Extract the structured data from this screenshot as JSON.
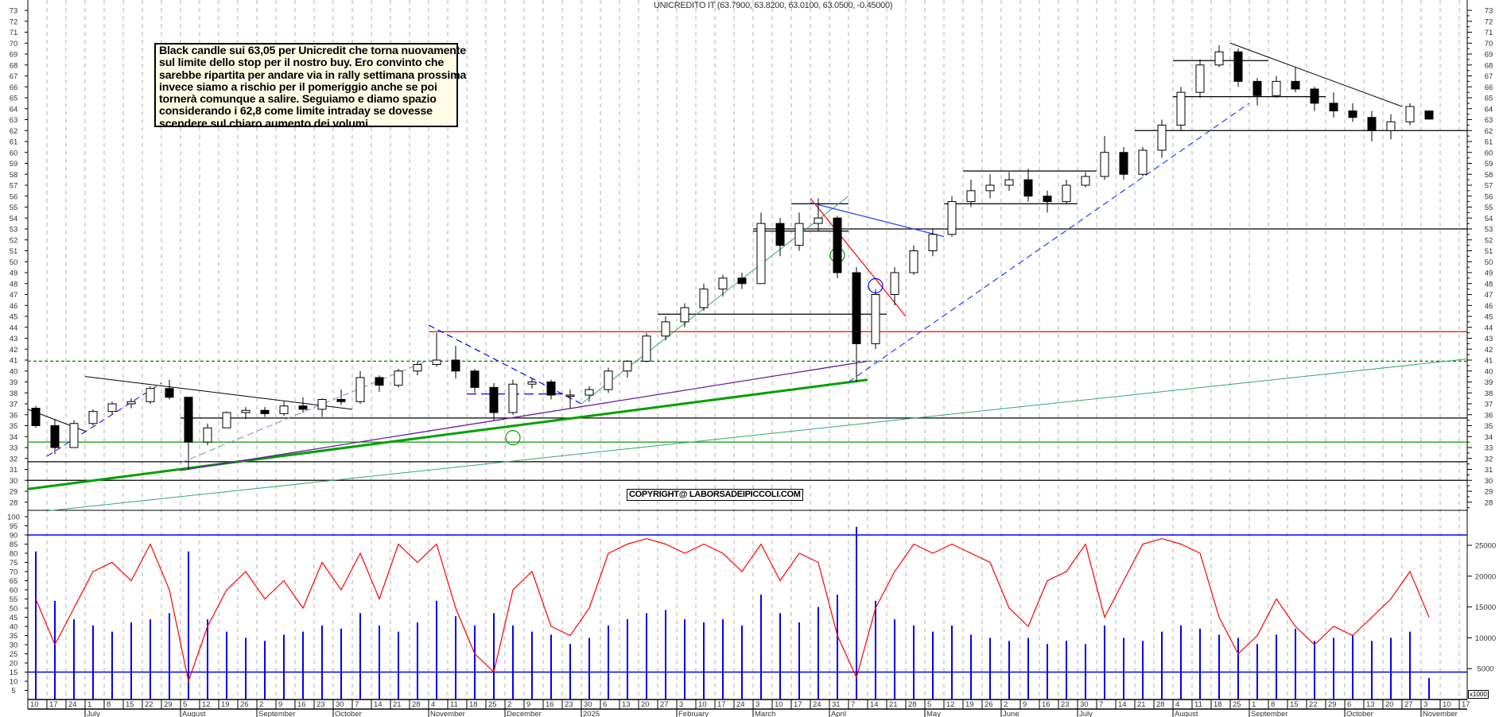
{
  "title": "UNICREDITO IT (63.7900, 63.8200, 63.0100, 63.0500, -0.45000)",
  "note_lines": [
    "Black candle sui 63,05 per Unicredit che torna nuovamente",
    "sul limite dello stop per il nostro buy. Ero convinto che",
    "sarebbe ripartita per andare via in rally settimana prossima",
    "invece siamo a rischio per il pomeriggio anche se poi",
    "tornerà comunque a salire. Seguiamo e diamo spazio",
    "considerando i 62,8 come limite intraday se dovesse",
    "scendere sul chiaro aumento dei volumi."
  ],
  "copyright": "COPYRIGHT@ LABORSADEIPICCOLI.COM",
  "volume_unit": "x1000",
  "colors": {
    "up": "#ffffff",
    "down": "#000000",
    "oscillator": "#ff0000",
    "volume": "#0000ff",
    "grid": "#b0b0b0"
  },
  "chart_data": {
    "type": "candlestick",
    "symbol": "UNICREDITO IT",
    "last": {
      "open": 63.79,
      "high": 63.82,
      "low": 63.01,
      "close": 63.05,
      "change": -0.45
    },
    "price_axis": {
      "range": [
        28,
        73
      ],
      "ticks": [
        28,
        29,
        30,
        31,
        32,
        33,
        34,
        35,
        36,
        37,
        38,
        39,
        40,
        41,
        42,
        43,
        44,
        45,
        46,
        47,
        48,
        49,
        50,
        51,
        52,
        53,
        54,
        55,
        56,
        57,
        58,
        59,
        60,
        61,
        62,
        63,
        64,
        65,
        66,
        67,
        68,
        69,
        70,
        71,
        72,
        73
      ]
    },
    "oscillator_axis": {
      "range": [
        0,
        100
      ],
      "ticks": [
        5,
        10,
        15,
        20,
        25,
        30,
        35,
        40,
        45,
        50,
        55,
        60,
        65,
        70,
        75,
        80,
        85,
        90,
        95,
        100
      ],
      "levels": [
        90,
        15
      ]
    },
    "volume_axis": {
      "range": [
        0,
        27000
      ],
      "ticks": [
        5000,
        10000,
        15000,
        20000,
        25000
      ],
      "unit": "x1000"
    },
    "grid": "vertical dashed weekly",
    "candles": [
      [
        "2024-06-10",
        36.6,
        36.8,
        34.8,
        35.0
      ],
      [
        "2024-06-17",
        35.0,
        35.6,
        32.4,
        33.0
      ],
      [
        "2024-06-24",
        33.0,
        35.5,
        33.0,
        35.2
      ],
      [
        "2024-07-01",
        35.2,
        36.5,
        35.0,
        36.3
      ],
      [
        "2024-07-08",
        36.3,
        37.2,
        36.0,
        37.0
      ],
      [
        "2024-07-15",
        37.0,
        37.5,
        36.6,
        37.2
      ],
      [
        "2024-07-22",
        37.2,
        38.6,
        37.0,
        38.4
      ],
      [
        "2024-07-29",
        38.4,
        39.2,
        37.4,
        37.6
      ],
      [
        "2024-08-05",
        37.6,
        37.6,
        31.0,
        33.5
      ],
      [
        "2024-08-12",
        33.5,
        35.2,
        33.2,
        34.8
      ],
      [
        "2024-08-19",
        34.8,
        36.3,
        34.8,
        36.2
      ],
      [
        "2024-08-26",
        36.2,
        36.7,
        35.6,
        36.4
      ],
      [
        "2024-09-02",
        36.4,
        36.7,
        35.8,
        36.1
      ],
      [
        "2024-09-09",
        36.1,
        37.2,
        35.9,
        36.8
      ],
      [
        "2024-09-16",
        36.8,
        37.6,
        36.2,
        36.5
      ],
      [
        "2024-09-23",
        36.5,
        37.5,
        35.8,
        37.4
      ],
      [
        "2024-09-30",
        37.4,
        38.3,
        36.9,
        37.2
      ],
      [
        "2024-10-07",
        37.2,
        40.0,
        37.0,
        39.4
      ],
      [
        "2024-10-14",
        39.4,
        39.6,
        38.1,
        38.7
      ],
      [
        "2024-10-21",
        38.7,
        40.2,
        38.5,
        40.0
      ],
      [
        "2024-10-28",
        40.0,
        40.9,
        39.6,
        40.6
      ],
      [
        "2024-11-04",
        40.6,
        43.5,
        40.4,
        41.0
      ],
      [
        "2024-11-11",
        41.0,
        42.3,
        39.3,
        40.0
      ],
      [
        "2024-11-18",
        40.0,
        40.2,
        38.0,
        38.5
      ],
      [
        "2024-11-25",
        38.5,
        38.9,
        35.5,
        36.2
      ],
      [
        "2024-12-02",
        36.2,
        39.2,
        36.0,
        38.8
      ],
      [
        "2024-12-09",
        38.8,
        39.3,
        38.4,
        39.0
      ],
      [
        "2024-12-16",
        39.0,
        39.2,
        37.4,
        37.8
      ],
      [
        "2024-12-23",
        37.8,
        38.3,
        36.6,
        37.8
      ],
      [
        "2024-12-30",
        37.8,
        38.6,
        37.2,
        38.3
      ],
      [
        "2025-01-06",
        38.3,
        40.3,
        38.0,
        40.0
      ],
      [
        "2025-01-13",
        40.0,
        41.0,
        39.4,
        40.9
      ],
      [
        "2025-01-20",
        40.9,
        43.5,
        40.8,
        43.2
      ],
      [
        "2025-01-27",
        43.2,
        45.0,
        42.8,
        44.5
      ],
      [
        "2025-02-03",
        44.5,
        46.2,
        44.0,
        45.8
      ],
      [
        "2025-02-10",
        45.8,
        48.0,
        45.5,
        47.5
      ],
      [
        "2025-02-17",
        47.5,
        48.8,
        46.8,
        48.5
      ],
      [
        "2025-02-24",
        48.5,
        49.0,
        47.5,
        48.0
      ],
      [
        "2025-03-03",
        48.0,
        54.5,
        48.0,
        53.5
      ],
      [
        "2025-03-10",
        53.5,
        54.0,
        50.5,
        51.5
      ],
      [
        "2025-03-17",
        51.5,
        54.5,
        51.0,
        53.5
      ],
      [
        "2025-03-24",
        53.5,
        55.8,
        52.8,
        54.0
      ],
      [
        "2025-03-31",
        54.0,
        54.2,
        48.5,
        49.0
      ],
      [
        "2025-04-07",
        49.0,
        49.5,
        39.0,
        42.5
      ],
      [
        "2025-04-14",
        42.5,
        47.5,
        42.0,
        47.0
      ],
      [
        "2025-04-21",
        47.0,
        49.5,
        46.0,
        49.0
      ],
      [
        "2025-04-28",
        49.0,
        51.5,
        48.8,
        51.0
      ],
      [
        "2025-05-05",
        51.0,
        53.0,
        50.5,
        52.5
      ],
      [
        "2025-05-12",
        52.5,
        56.0,
        52.3,
        55.5
      ],
      [
        "2025-05-19",
        55.5,
        57.5,
        55.0,
        56.5
      ],
      [
        "2025-05-26",
        56.5,
        58.0,
        55.8,
        57.0
      ],
      [
        "2025-06-02",
        57.0,
        58.2,
        56.5,
        57.5
      ],
      [
        "2025-06-09",
        57.5,
        58.5,
        55.5,
        56.0
      ],
      [
        "2025-06-16",
        56.0,
        56.5,
        54.5,
        55.5
      ],
      [
        "2025-06-23",
        55.5,
        57.5,
        55.3,
        57.0
      ],
      [
        "2025-06-30",
        57.0,
        58.2,
        56.8,
        57.8
      ],
      [
        "2025-07-07",
        57.8,
        61.5,
        57.5,
        60.0
      ],
      [
        "2025-07-14",
        60.0,
        60.5,
        57.5,
        58.0
      ],
      [
        "2025-07-21",
        58.0,
        60.5,
        57.8,
        60.2
      ],
      [
        "2025-07-28",
        60.2,
        63.0,
        59.5,
        62.5
      ],
      [
        "2025-08-04",
        62.5,
        66.0,
        62.0,
        65.5
      ],
      [
        "2025-08-11",
        65.5,
        68.5,
        65.0,
        68.0
      ],
      [
        "2025-08-18",
        68.0,
        69.8,
        67.8,
        69.2
      ],
      [
        "2025-08-25",
        69.2,
        69.5,
        66.0,
        66.5
      ],
      [
        "2025-09-01",
        66.5,
        66.8,
        64.3,
        65.2
      ],
      [
        "2025-09-08",
        65.2,
        67.0,
        65.0,
        66.5
      ],
      [
        "2025-09-15",
        66.5,
        67.8,
        65.5,
        65.8
      ],
      [
        "2025-09-22",
        65.8,
        66.0,
        63.8,
        64.5
      ],
      [
        "2025-09-29",
        64.5,
        65.5,
        63.2,
        63.8
      ],
      [
        "2025-10-06",
        63.8,
        64.5,
        62.8,
        63.2
      ],
      [
        "2025-10-13",
        63.2,
        63.8,
        61.0,
        62.0
      ],
      [
        "2025-10-20",
        62.0,
        63.5,
        61.2,
        62.8
      ],
      [
        "2025-10-27",
        62.8,
        64.5,
        62.5,
        64.2
      ],
      [
        "2025-11-03",
        63.79,
        63.82,
        63.01,
        63.05
      ]
    ],
    "oscillator": [
      55,
      30,
      50,
      70,
      75,
      65,
      85,
      60,
      10,
      40,
      60,
      70,
      55,
      65,
      50,
      75,
      60,
      80,
      55,
      85,
      75,
      85,
      50,
      25,
      15,
      60,
      70,
      40,
      35,
      50,
      80,
      85,
      88,
      85,
      80,
      85,
      80,
      70,
      85,
      65,
      80,
      75,
      35,
      12,
      50,
      70,
      85,
      80,
      85,
      80,
      75,
      50,
      40,
      65,
      70,
      85,
      45,
      65,
      85,
      88,
      85,
      80,
      45,
      25,
      35,
      55,
      40,
      30,
      40,
      35,
      45,
      55,
      70,
      45
    ],
    "volume": [
      24000,
      16000,
      13000,
      12000,
      11000,
      12500,
      13000,
      14000,
      24000,
      13000,
      11000,
      10000,
      9500,
      10500,
      11000,
      12000,
      11500,
      14000,
      12000,
      11000,
      12500,
      16000,
      13500,
      12000,
      14000,
      12000,
      11000,
      10500,
      9000,
      10000,
      12000,
      13000,
      14000,
      14500,
      13000,
      12500,
      13000,
      12000,
      17000,
      14000,
      12500,
      15000,
      17000,
      28000,
      16000,
      13000,
      12000,
      11000,
      12000,
      10500,
      10000,
      9500,
      10000,
      9000,
      9500,
      9000,
      12000,
      10000,
      9500,
      11000,
      12000,
      11500,
      10500,
      10000,
      9000,
      10500,
      11500,
      9500,
      10000,
      10500,
      9500,
      10000,
      11000,
      3500
    ],
    "hlines": [
      {
        "price": 62,
        "from": "2025-07-21",
        "to": "end",
        "color": "#000000"
      },
      {
        "price": 53,
        "from": "2025-03-03",
        "to": "end",
        "color": "#000000"
      },
      {
        "price": 35.7,
        "from": "2024-08-05",
        "to": "end",
        "color": "#000000"
      },
      {
        "price": 31.7,
        "from": "start",
        "to": "end",
        "color": "#000000"
      },
      {
        "price": 30,
        "from": "start",
        "to": "end",
        "color": "#000000"
      },
      {
        "price": 43.6,
        "from": "2024-11-04",
        "to": "end",
        "color": "#ff0000"
      },
      {
        "price": 40.9,
        "from": "start",
        "to": "end",
        "color": "#008000",
        "dash": true
      },
      {
        "price": 33.5,
        "from": "start",
        "to": "end",
        "color": "#009900"
      },
      {
        "price": 68.4,
        "from": "2025-08-04",
        "to": "2025-09-08",
        "color": "#000000"
      },
      {
        "price": 65.1,
        "from": "2025-08-04",
        "to": "2025-09-29",
        "color": "#000000"
      },
      {
        "price": 58.3,
        "from": "2025-05-19",
        "to": "2025-07-07",
        "color": "#000000"
      },
      {
        "price": 55.3,
        "from": "2025-05-12",
        "to": "2025-06-30",
        "color": "#000000"
      },
      {
        "price": 55.3,
        "from": "2025-03-17",
        "to": "2025-04-07",
        "color": "#000000"
      },
      {
        "price": 52.8,
        "from": "2025-03-03",
        "to": "2025-04-07",
        "color": "#000000"
      },
      {
        "price": 45.2,
        "from": "2025-01-27",
        "to": "2025-04-21",
        "color": "#000000"
      },
      {
        "price": 37.9,
        "from": "2024-11-18",
        "to": "2024-12-23",
        "color": "#0000ff",
        "dash": true
      }
    ],
    "trendlines": [
      {
        "from": [
          "start",
          29.2
        ],
        "to": [
          "2025-04-14",
          39.2
        ],
        "color": "#00a000",
        "width": 3
      },
      {
        "from": [
          "2024-06-17",
          27.2
        ],
        "to": [
          "end",
          41.1
        ],
        "color": "#33aa66",
        "width": 1
      },
      {
        "from": [
          "2024-08-05",
          30.9
        ],
        "to": [
          "2025-04-14",
          40.9
        ],
        "color": "#6a1b9a",
        "width": 1.3
      },
      {
        "from": [
          "2025-04-07",
          39.0
        ],
        "to": [
          "2025-09-01",
          64.5
        ],
        "color": "#2040ff",
        "width": 1.2,
        "dash": true
      },
      {
        "from": [
          "2025-08-25",
          70.0
        ],
        "to": [
          "2025-10-27",
          64.2
        ],
        "color": "#000000",
        "width": 1
      },
      {
        "from": [
          "2024-07-01",
          39.5
        ],
        "to": [
          "2024-10-07",
          36.5
        ],
        "color": "#000000",
        "width": 1
      },
      {
        "from": [
          "2024-06-10",
          36.5
        ],
        "to": [
          "2024-07-01",
          34.5
        ],
        "color": "#000000",
        "width": 1
      },
      {
        "from": [
          "2024-06-17",
          32.2
        ],
        "to": [
          "2024-07-29",
          38.9
        ],
        "color": "#0000ff",
        "width": 1,
        "dash": true
      },
      {
        "from": [
          "2024-08-05",
          31.6
        ],
        "to": [
          "2024-11-04",
          41.0
        ],
        "color": "#7090c0",
        "width": 1,
        "dash": true
      },
      {
        "from": [
          "2024-11-04",
          44.2
        ],
        "to": [
          "2024-12-30",
          37.0
        ],
        "color": "#0000ff",
        "width": 1.2,
        "dash": true
      },
      {
        "from": [
          "2024-12-30",
          37.0
        ],
        "to": [
          "2025-04-07",
          56.0
        ],
        "color": "#33aa66",
        "width": 1
      },
      {
        "from": [
          "2025-03-24",
          55.4
        ],
        "to": [
          "2025-05-12",
          52.3
        ],
        "color": "#2040ff",
        "width": 1.2
      },
      {
        "from": [
          "2025-03-24",
          55.8
        ],
        "to": [
          "2025-04-28",
          45.0
        ],
        "color": "#ff0000",
        "width": 1.2
      }
    ],
    "ellipses": [
      {
        "date": "2024-12-02",
        "price": 33.9,
        "color": "#00a000"
      },
      {
        "date": "2025-03-31",
        "price": 50.6,
        "color": "#00a000"
      },
      {
        "date": "2025-04-14",
        "price": 47.8,
        "color": "#0000ff"
      }
    ],
    "x_tick_dates": [
      "2024-06-10",
      "2024-06-17",
      "2024-06-24",
      "2024-07-01",
      "2024-07-08",
      "2024-07-15",
      "2024-07-22",
      "2024-07-29",
      "2024-08-05",
      "2024-08-12",
      "2024-08-19",
      "2024-08-26",
      "2024-09-02",
      "2024-09-09",
      "2024-09-16",
      "2024-09-23",
      "2024-09-30",
      "2024-10-07",
      "2024-10-14",
      "2024-10-21",
      "2024-10-28",
      "2024-11-04",
      "2024-11-11",
      "2024-11-18",
      "2024-11-25",
      "2024-12-02",
      "2024-12-09",
      "2024-12-16",
      "2024-12-23",
      "2024-12-30",
      "2025-01-06",
      "2025-01-13",
      "2025-01-20",
      "2025-01-27",
      "2025-02-03",
      "2025-02-10",
      "2025-02-17",
      "2025-02-24",
      "2025-03-03",
      "2025-03-10",
      "2025-03-17",
      "2025-03-24",
      "2025-03-31",
      "2025-04-07",
      "2025-04-14",
      "2025-04-21",
      "2025-04-28",
      "2025-05-05",
      "2025-05-12",
      "2025-05-19",
      "2025-05-26",
      "2025-06-02",
      "2025-06-09",
      "2025-06-16",
      "2025-06-23",
      "2025-06-30",
      "2025-07-07",
      "2025-07-14",
      "2025-07-21",
      "2025-07-28",
      "2025-08-04",
      "2025-08-11",
      "2025-08-18",
      "2025-08-25",
      "2025-09-01",
      "2025-09-08",
      "2025-09-15",
      "2025-09-22",
      "2025-09-29",
      "2025-10-06",
      "2025-10-13",
      "2025-10-20",
      "2025-10-27",
      "2025-11-03",
      "2025-11-10",
      "2025-11-17"
    ],
    "month_labels": [
      {
        "date": "2024-07-01",
        "label": "July"
      },
      {
        "date": "2024-08-05",
        "label": "August"
      },
      {
        "date": "2024-09-02",
        "label": "September"
      },
      {
        "date": "2024-09-30",
        "label": "October"
      },
      {
        "date": "2024-11-04",
        "label": "November"
      },
      {
        "date": "2024-12-02",
        "label": "December"
      },
      {
        "date": "2024-12-30",
        "label": "2025"
      },
      {
        "date": "2025-02-03",
        "label": "February"
      },
      {
        "date": "2025-03-03",
        "label": "March"
      },
      {
        "date": "2025-03-31",
        "label": "April"
      },
      {
        "date": "2025-05-05",
        "label": "May"
      },
      {
        "date": "2025-06-02",
        "label": "June"
      },
      {
        "date": "2025-06-30",
        "label": "July"
      },
      {
        "date": "2025-08-04",
        "label": "August"
      },
      {
        "date": "2025-09-01",
        "label": "September"
      },
      {
        "date": "2025-10-06",
        "label": "October"
      },
      {
        "date": "2025-11-03",
        "label": "November"
      }
    ]
  }
}
